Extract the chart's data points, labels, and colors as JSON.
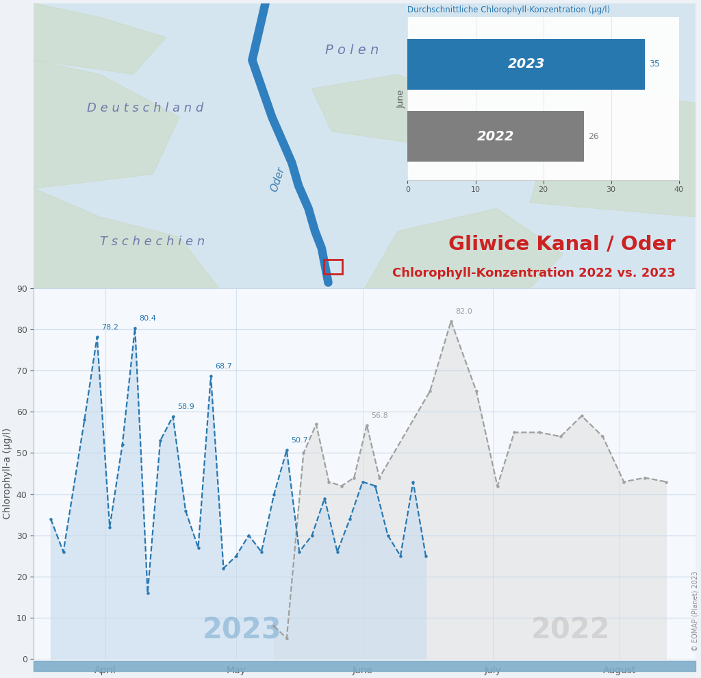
{
  "title_main": "Gliwice Kanal / Oder",
  "title_sub": "Chlorophyll-Konzentration 2022 vs. 2023",
  "ylabel": "Chlorophyll-a (µg/l)",
  "bar_title": "Durchschnittliche Chlorophyll-Konzentration (µg/l)",
  "bar_ylabel": "June",
  "bar_2023_val": 35,
  "bar_2022_val": 26,
  "bar_xlim": [
    0,
    40
  ],
  "bar_xticks": [
    0,
    10,
    20,
    30,
    40
  ],
  "bar_color_2023": "#2878b0",
  "bar_color_2022": "#7f7f7f",
  "copyright": "© EOMAP (Planet) 2023",
  "label_2023": "2023",
  "label_2022": "2022",
  "color_2023": "#2878b0",
  "color_2022": "#a0a0a0",
  "fill_2023": "#cfe0f0",
  "fill_2022": "#e0e0e0",
  "ylim": [
    0,
    90
  ],
  "yticks": [
    0,
    10,
    20,
    30,
    40,
    50,
    60,
    70,
    80,
    90
  ],
  "map_bg_color": "#dce8f2",
  "chart_bg_color": "#f5f8fc",
  "bottom_bar_color": "#7aaac8",
  "x2023_days": [
    2,
    5,
    10,
    13,
    16,
    19,
    22,
    25,
    28,
    31,
    34,
    37,
    40,
    43,
    46,
    49,
    52,
    55,
    58,
    61,
    64,
    67,
    70,
    73,
    76,
    79,
    82,
    85,
    88,
    91
  ],
  "y2023": [
    34,
    26,
    58,
    78.2,
    32,
    52,
    80.4,
    16,
    53,
    58.9,
    36,
    27,
    68.7,
    22,
    25,
    30,
    26,
    40,
    50.7,
    26,
    30,
    39,
    26,
    34,
    43,
    42,
    30,
    25,
    43,
    25
  ],
  "x2022_days": [
    55,
    58,
    62,
    65,
    68,
    71,
    74,
    77,
    80,
    92,
    97,
    103,
    108,
    112,
    118,
    123,
    128,
    133,
    138,
    143,
    148
  ],
  "y2022": [
    8,
    5,
    50,
    57,
    43,
    42,
    44,
    56.8,
    44,
    65,
    82.0,
    65,
    42,
    55,
    55,
    54,
    59,
    54,
    43,
    44,
    43
  ],
  "peak_labels_2023": [
    {
      "xi": 3,
      "y": 78.2,
      "text": "78.2"
    },
    {
      "xi": 6,
      "y": 80.4,
      "text": "80.4"
    },
    {
      "xi": 9,
      "y": 58.9,
      "text": "58.9"
    },
    {
      "xi": 12,
      "y": 68.7,
      "text": "68.7"
    },
    {
      "xi": 18,
      "y": 50.7,
      "text": "50.7"
    }
  ],
  "peak_labels_2022": [
    {
      "xi": 7,
      "y": 56.8,
      "text": "56.8"
    },
    {
      "xi": 10,
      "y": 82.0,
      "text": "82.0"
    }
  ],
  "month_positions": [
    15,
    46,
    76,
    107,
    137
  ],
  "month_labels": [
    "April",
    "May",
    "June",
    "July",
    "August"
  ]
}
